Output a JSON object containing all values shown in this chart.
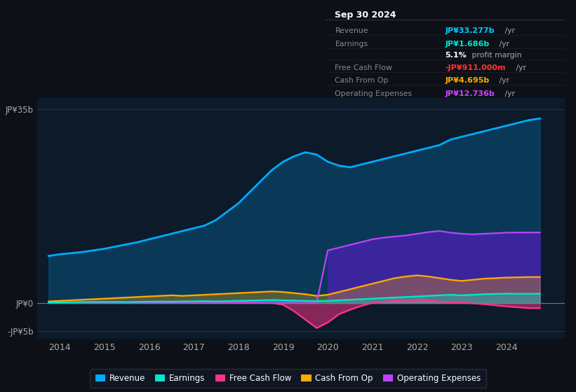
{
  "bg_color": "#0d1117",
  "plot_bg_color": "#0d1a2a",
  "title_box_date": "Sep 30 2024",
  "years": [
    2013.75,
    2014.0,
    2014.25,
    2014.5,
    2014.75,
    2015.0,
    2015.25,
    2015.5,
    2015.75,
    2016.0,
    2016.25,
    2016.5,
    2016.75,
    2017.0,
    2017.25,
    2017.5,
    2017.75,
    2018.0,
    2018.25,
    2018.5,
    2018.75,
    2019.0,
    2019.25,
    2019.5,
    2019.75,
    2020.0,
    2020.25,
    2020.5,
    2020.75,
    2021.0,
    2021.25,
    2021.5,
    2021.75,
    2022.0,
    2022.25,
    2022.5,
    2022.75,
    2023.0,
    2023.25,
    2023.5,
    2023.75,
    2024.0,
    2024.25,
    2024.5,
    2024.75
  ],
  "revenue": [
    8.5,
    8.8,
    9.0,
    9.2,
    9.5,
    9.8,
    10.2,
    10.6,
    11.0,
    11.5,
    12.0,
    12.5,
    13.0,
    13.5,
    14.0,
    15.0,
    16.5,
    18.0,
    20.0,
    22.0,
    24.0,
    25.5,
    26.5,
    27.2,
    26.8,
    25.5,
    24.8,
    24.5,
    25.0,
    25.5,
    26.0,
    26.5,
    27.0,
    27.5,
    28.0,
    28.5,
    29.5,
    30.0,
    30.5,
    31.0,
    31.5,
    32.0,
    32.5,
    33.0,
    33.3
  ],
  "earnings": [
    0.1,
    0.12,
    0.15,
    0.18,
    0.2,
    0.22,
    0.2,
    0.18,
    0.22,
    0.25,
    0.28,
    0.25,
    0.3,
    0.32,
    0.35,
    0.3,
    0.35,
    0.4,
    0.45,
    0.5,
    0.55,
    0.5,
    0.45,
    0.4,
    0.35,
    0.4,
    0.5,
    0.6,
    0.7,
    0.8,
    0.9,
    1.0,
    1.1,
    1.2,
    1.3,
    1.4,
    1.5,
    1.4,
    1.5,
    1.6,
    1.65,
    1.7,
    1.68,
    1.686,
    1.686
  ],
  "free_cash_flow": [
    0.05,
    0.08,
    0.1,
    0.08,
    0.05,
    0.1,
    0.08,
    0.05,
    0.08,
    0.1,
    0.05,
    0.02,
    0.05,
    0.05,
    0.02,
    0.05,
    0.05,
    0.08,
    0.1,
    0.05,
    0.02,
    -0.3,
    -1.5,
    -3.0,
    -4.5,
    -3.5,
    -2.0,
    -1.2,
    -0.5,
    0.05,
    0.3,
    0.5,
    0.3,
    0.6,
    0.5,
    0.3,
    0.15,
    0.1,
    -0.05,
    -0.2,
    -0.4,
    -0.6,
    -0.75,
    -0.91,
    -0.91
  ],
  "cash_from_op": [
    0.3,
    0.4,
    0.5,
    0.6,
    0.7,
    0.8,
    0.9,
    1.0,
    1.1,
    1.2,
    1.3,
    1.4,
    1.3,
    1.4,
    1.5,
    1.6,
    1.7,
    1.8,
    1.9,
    2.0,
    2.1,
    2.0,
    1.8,
    1.6,
    1.3,
    1.5,
    2.0,
    2.5,
    3.0,
    3.5,
    4.0,
    4.5,
    4.8,
    5.0,
    4.8,
    4.5,
    4.2,
    4.0,
    4.2,
    4.4,
    4.5,
    4.6,
    4.65,
    4.695,
    4.695
  ],
  "operating_expenses": [
    0.0,
    0.0,
    0.0,
    0.0,
    0.0,
    0.0,
    0.0,
    0.0,
    0.0,
    0.0,
    0.0,
    0.0,
    0.0,
    0.0,
    0.0,
    0.0,
    0.0,
    0.0,
    0.0,
    0.0,
    0.0,
    0.0,
    0.0,
    0.0,
    0.0,
    9.5,
    10.0,
    10.5,
    11.0,
    11.5,
    11.8,
    12.0,
    12.2,
    12.5,
    12.8,
    13.0,
    12.7,
    12.5,
    12.4,
    12.5,
    12.6,
    12.7,
    12.736,
    12.736,
    12.736
  ],
  "xlim": [
    2013.5,
    2025.3
  ],
  "ylim": [
    -6.5,
    37
  ],
  "yticks": [
    -5,
    0,
    35
  ],
  "ytick_labels": [
    "-JP¥5b",
    "JP¥0",
    "JP¥35b"
  ],
  "xtick_years": [
    2014,
    2015,
    2016,
    2017,
    2018,
    2019,
    2020,
    2021,
    2022,
    2023,
    2024
  ],
  "revenue_color": "#00aaff",
  "earnings_color": "#00e8c8",
  "fcf_color": "#ff3388",
  "cashop_color": "#ffaa00",
  "opex_color": "#bb44ff",
  "legend_items": [
    {
      "label": "Revenue",
      "color": "#00aaff"
    },
    {
      "label": "Earnings",
      "color": "#00e8c8"
    },
    {
      "label": "Free Cash Flow",
      "color": "#ff3388"
    },
    {
      "label": "Cash From Op",
      "color": "#ffaa00"
    },
    {
      "label": "Operating Expenses",
      "color": "#bb44ff"
    }
  ],
  "info_box": {
    "date": "Sep 30 2024",
    "rows": [
      {
        "label": "Revenue",
        "value": "JP¥33.277b",
        "suffix": " /yr",
        "value_color": "#00ccff"
      },
      {
        "label": "Earnings",
        "value": "JP¥1.686b",
        "suffix": " /yr",
        "value_color": "#00e8c8"
      },
      {
        "label": "",
        "value": "5.1%",
        "suffix": " profit margin",
        "value_color": "#ffffff"
      },
      {
        "label": "Free Cash Flow",
        "value": "-JP¥911.000m",
        "suffix": " /yr",
        "value_color": "#ff3333"
      },
      {
        "label": "Cash From Op",
        "value": "JP¥4.695b",
        "suffix": " /yr",
        "value_color": "#ffaa00"
      },
      {
        "label": "Operating Expenses",
        "value": "JP¥12.736b",
        "suffix": " /yr",
        "value_color": "#cc44ff"
      }
    ]
  }
}
